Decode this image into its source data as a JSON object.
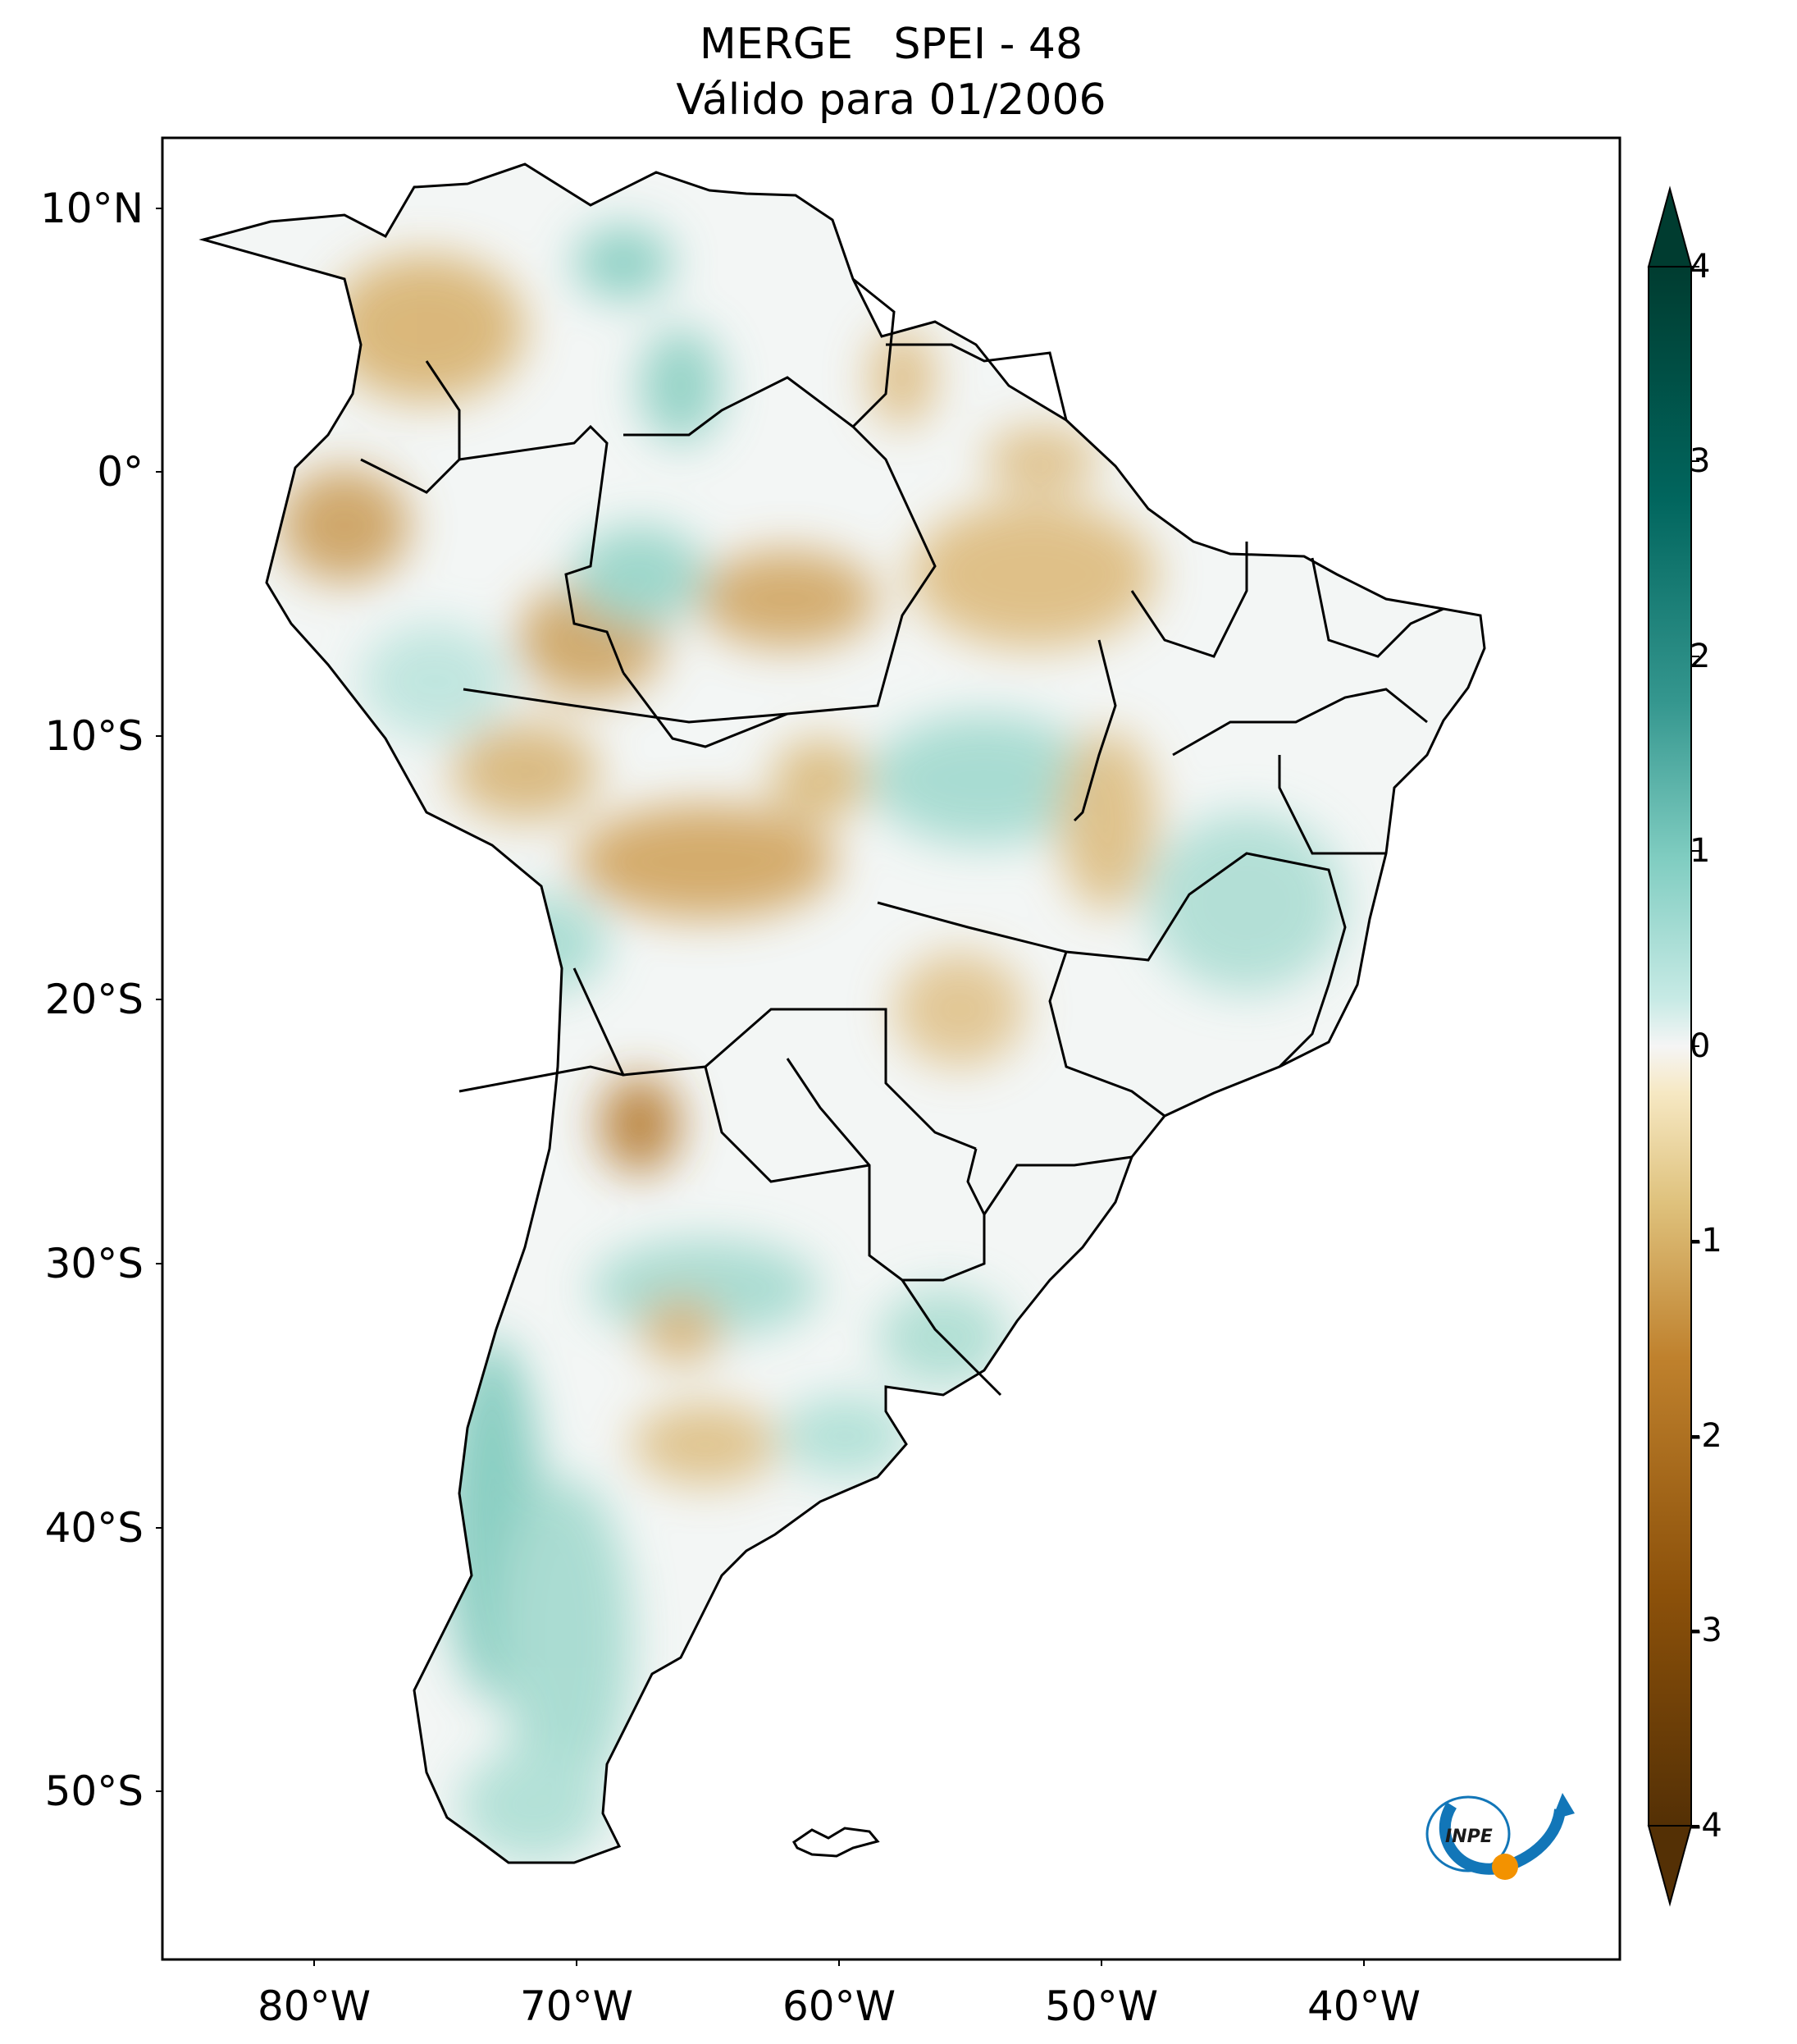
{
  "map": {
    "title_line1": "MERGE   SPEI - 48",
    "title_line2": "Válido para 01/2006",
    "lat_labels": [
      "10°N",
      "0°",
      "10°S",
      "20°S",
      "30°S",
      "40°S",
      "50°S"
    ],
    "lon_labels": [
      "80°W",
      "70°W",
      "60°W",
      "50°W",
      "40°W"
    ],
    "colorbar": {
      "ticks": [
        "4",
        "3",
        "2",
        "1",
        "0",
        "-1",
        "-2",
        "-3",
        "-4"
      ],
      "min": -4,
      "max": 4,
      "colors": {
        "dry_extreme": "#543005",
        "dry": "#bf812d",
        "dry_light": "#f6e8c3",
        "neutral": "#f5f5f5",
        "wet_light": "#c7eae5",
        "wet": "#35978f",
        "wet_extreme": "#003c30"
      }
    },
    "logo_text": "INPE",
    "logo_colors": {
      "blue": "#1276b8",
      "orange": "#f39200"
    }
  }
}
